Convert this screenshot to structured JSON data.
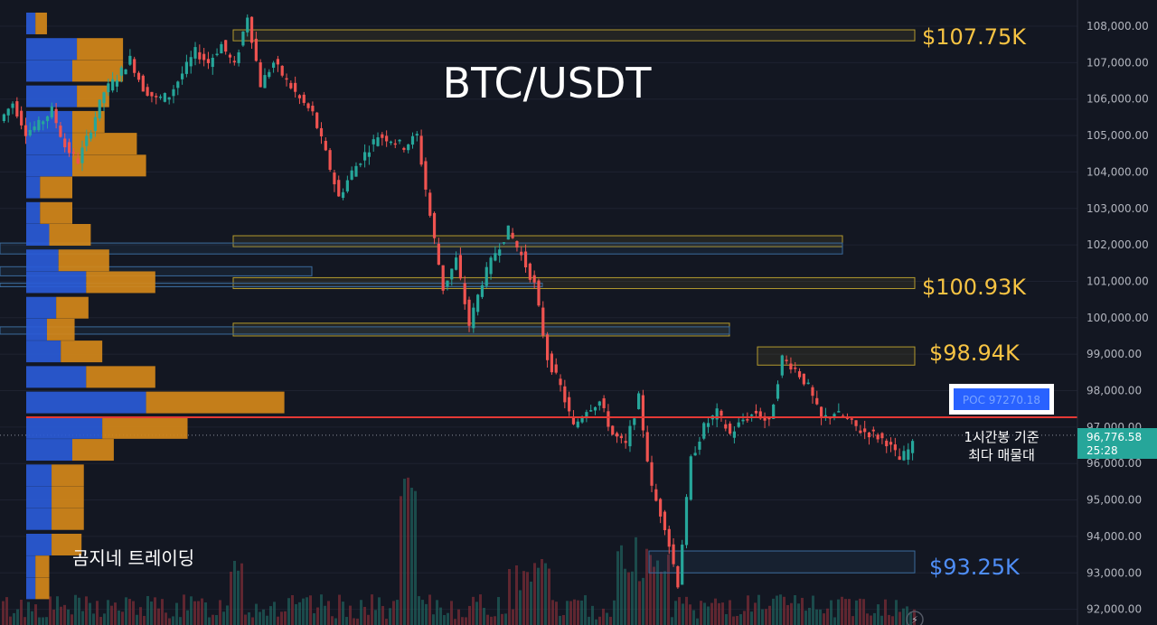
{
  "colors": {
    "background": "#131722",
    "up": "#26a69a",
    "down": "#ef5350",
    "vp_blue": "#2a5bd7",
    "vp_orange": "#d4881a",
    "zone_yellow": "#b39a2e",
    "zone_blue": "#3b6b9c",
    "poc_line": "#e53935",
    "label_yellow": "#f6c343",
    "label_blue": "#4f8ef7"
  },
  "chart_data": {
    "type": "candlestick",
    "title": "BTC/USDT",
    "ylim": [
      91800,
      108500
    ],
    "y_ticks": [
      "108,000.00",
      "107,000.00",
      "106,000.00",
      "105,000.00",
      "104,000.00",
      "103,000.00",
      "102,000.00",
      "101,000.00",
      "100,000.00",
      "99,000.00",
      "98,000.00",
      "97,000.00",
      "96,000.00",
      "95,000.00",
      "94,000.00",
      "93,000.00",
      "92,000.00"
    ],
    "y_tick_values": [
      108000,
      107000,
      106000,
      105000,
      104000,
      103000,
      102000,
      101000,
      100000,
      99000,
      98000,
      97000,
      96000,
      95000,
      94000,
      93000,
      92000
    ],
    "current_price": "96,776.58",
    "current_price_value": 96776.58,
    "countdown": "25:28",
    "price_path": [
      105400,
      105900,
      105100,
      105300,
      105700,
      104700,
      104300,
      105200,
      106200,
      106600,
      107100,
      106300,
      106000,
      106100,
      106700,
      107300,
      107000,
      107500,
      106900,
      108300,
      106400,
      107000,
      106500,
      106000,
      105600,
      104500,
      103300,
      104000,
      104500,
      105000,
      104900,
      104700,
      105000,
      102800,
      100800,
      101600,
      99800,
      101000,
      101800,
      102400,
      101700,
      100900,
      98900,
      98100,
      97000,
      97500,
      97700,
      96800,
      96500,
      97800,
      95300,
      94300,
      92700,
      96100,
      97000,
      97400,
      96800,
      97200,
      97400,
      97100,
      98900,
      98600,
      98100,
      97200,
      97400,
      97200,
      96900,
      96800,
      96600,
      96100,
      96500
    ],
    "levels": [
      {
        "label": "$107.75K",
        "value": 107750
      },
      {
        "label": "$100.93K",
        "value": 100930
      },
      {
        "label": "$98.94K",
        "value": 98940
      },
      {
        "label": "$93.25K",
        "value": 93250
      }
    ],
    "poc": {
      "label": "POC  97270.18",
      "value": 97270.18
    },
    "zones": [
      {
        "low": 107600,
        "high": 107900,
        "color": "yellow"
      },
      {
        "low": 101950,
        "high": 102250,
        "color": "yellow"
      },
      {
        "low": 101750,
        "high": 102050,
        "color": "blue"
      },
      {
        "low": 101150,
        "high": 101400,
        "color": "blue"
      },
      {
        "low": 100800,
        "high": 101100,
        "color": "yellow"
      },
      {
        "low": 100850,
        "high": 100950,
        "color": "blue"
      },
      {
        "low": 99500,
        "high": 99850,
        "color": "yellow"
      },
      {
        "low": 99550,
        "high": 99750,
        "color": "blue"
      },
      {
        "low": 98700,
        "high": 99200,
        "color": "yellow"
      },
      {
        "low": 93000,
        "high": 93600,
        "color": "blue"
      }
    ],
    "volume_profile": [
      {
        "price": 108100,
        "up": 4,
        "down": 5
      },
      {
        "price": 107400,
        "up": 22,
        "down": 20
      },
      {
        "price": 106800,
        "up": 20,
        "down": 22
      },
      {
        "price": 106100,
        "up": 22,
        "down": 14
      },
      {
        "price": 105400,
        "up": 20,
        "down": 14
      },
      {
        "price": 104800,
        "up": 20,
        "down": 28
      },
      {
        "price": 104200,
        "up": 20,
        "down": 32
      },
      {
        "price": 103600,
        "up": 6,
        "down": 14
      },
      {
        "price": 102900,
        "up": 6,
        "down": 14
      },
      {
        "price": 102300,
        "up": 10,
        "down": 18
      },
      {
        "price": 101600,
        "up": 14,
        "down": 22
      },
      {
        "price": 101000,
        "up": 26,
        "down": 30
      },
      {
        "price": 100300,
        "up": 13,
        "down": 14
      },
      {
        "price": 99700,
        "up": 9,
        "down": 12
      },
      {
        "price": 99100,
        "up": 15,
        "down": 18
      },
      {
        "price": 98400,
        "up": 26,
        "down": 30
      },
      {
        "price": 97700,
        "up": 52,
        "down": 60
      },
      {
        "price": 97000,
        "up": 33,
        "down": 37
      },
      {
        "price": 96400,
        "up": 20,
        "down": 18
      },
      {
        "price": 95700,
        "up": 11,
        "down": 14
      },
      {
        "price": 95100,
        "up": 11,
        "down": 14
      },
      {
        "price": 94500,
        "up": 11,
        "down": 14
      },
      {
        "price": 93800,
        "up": 11,
        "down": 13
      },
      {
        "price": 93200,
        "up": 4,
        "down": 6
      },
      {
        "price": 92600,
        "up": 4,
        "down": 6
      }
    ]
  },
  "annotations": {
    "poc_note_line1": "1시간봉 기준",
    "poc_note_line2": "최다 매물대",
    "watermark": "곰지네 트레이딩"
  }
}
